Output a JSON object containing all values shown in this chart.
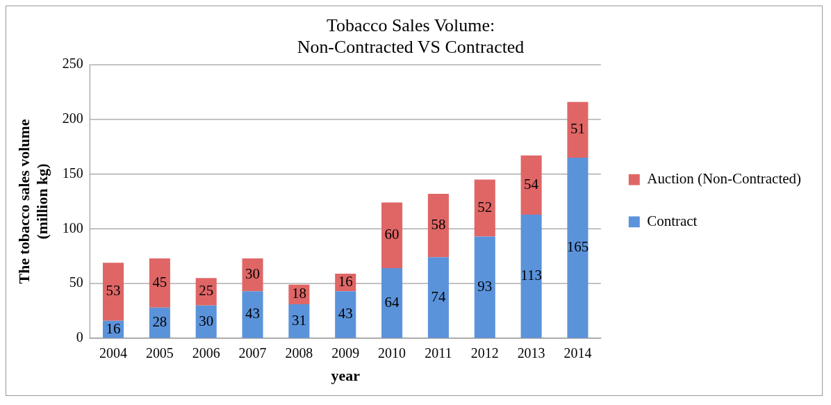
{
  "chart_data": {
    "type": "bar",
    "title": "Tobacco Sales Volume:\nNon-Contracted VS Contracted",
    "xlabel": "year",
    "ylabel": "The tobacco sales volume\n(million kg)",
    "categories": [
      "2004",
      "2005",
      "2006",
      "2007",
      "2008",
      "2009",
      "2010",
      "2011",
      "2012",
      "2013",
      "2014"
    ],
    "series": [
      {
        "name": "Contract",
        "color": "#5b93db",
        "values": [
          16,
          28,
          30,
          43,
          31,
          43,
          64,
          74,
          93,
          113,
          165
        ]
      },
      {
        "name": "Auction (Non-Contracted)",
        "color": "#e06666",
        "values": [
          53,
          45,
          25,
          30,
          18,
          16,
          60,
          58,
          52,
          54,
          51
        ]
      }
    ],
    "stacked": true,
    "ylim": [
      0,
      250
    ],
    "yticks": [
      0,
      50,
      100,
      150,
      200,
      250
    ],
    "grid": "y",
    "legend": "right",
    "data_labels": true
  }
}
